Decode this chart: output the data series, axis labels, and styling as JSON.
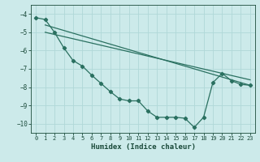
{
  "xlabel": "Humidex (Indice chaleur)",
  "background_color": "#cceaea",
  "grid_color": "#b0d8d8",
  "line_color": "#2a7060",
  "xlim": [
    -0.5,
    23.5
  ],
  "ylim": [
    -10.5,
    -3.5
  ],
  "xticks": [
    0,
    1,
    2,
    3,
    4,
    5,
    6,
    7,
    8,
    9,
    10,
    11,
    12,
    13,
    14,
    15,
    16,
    17,
    18,
    19,
    20,
    21,
    22,
    23
  ],
  "yticks": [
    -10,
    -9,
    -8,
    -7,
    -6,
    -5,
    -4
  ],
  "series1_x": [
    0,
    1,
    2,
    3,
    4,
    5,
    6,
    7,
    8,
    9,
    10,
    11,
    12,
    13,
    14,
    15,
    16,
    17,
    18,
    19,
    20,
    21,
    22,
    23
  ],
  "series1_y": [
    -4.2,
    -4.3,
    -5.0,
    -5.85,
    -6.55,
    -6.85,
    -7.35,
    -7.8,
    -8.25,
    -8.65,
    -8.75,
    -8.75,
    -9.3,
    -9.65,
    -9.65,
    -9.65,
    -9.7,
    -10.2,
    -9.65,
    -7.75,
    -7.25,
    -7.65,
    -7.85,
    -7.9
  ],
  "series2_x": [
    1,
    23
  ],
  "series2_y": [
    -4.6,
    -7.9
  ],
  "series3_x": [
    1,
    23
  ],
  "series3_y": [
    -5.0,
    -7.6
  ],
  "marker": "D",
  "markersize": 2.5
}
